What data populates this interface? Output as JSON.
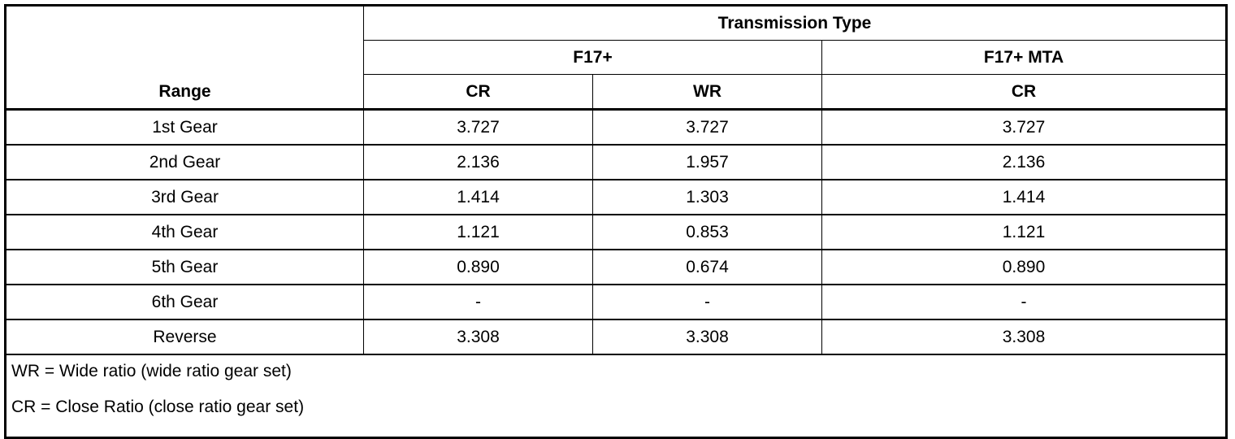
{
  "header": {
    "range_label": "Range",
    "group_label": "Transmission Type",
    "subgroups": [
      "F17+",
      "F17+ MTA"
    ],
    "columns": [
      "CR",
      "WR",
      "CR"
    ]
  },
  "rows": [
    {
      "range": "1st Gear",
      "values": [
        "3.727",
        "3.727",
        "3.727"
      ]
    },
    {
      "range": "2nd Gear",
      "values": [
        "2.136",
        "1.957",
        "2.136"
      ]
    },
    {
      "range": "3rd Gear",
      "values": [
        "1.414",
        "1.303",
        "1.414"
      ]
    },
    {
      "range": "4th Gear",
      "values": [
        "1.121",
        "0.853",
        "1.121"
      ]
    },
    {
      "range": "5th Gear",
      "values": [
        "0.890",
        "0.674",
        "0.890"
      ]
    },
    {
      "range": "6th Gear",
      "values": [
        "-",
        "-",
        "-"
      ]
    },
    {
      "range": "Reverse",
      "values": [
        "3.308",
        "3.308",
        "3.308"
      ]
    }
  ],
  "notes": [
    "WR = Wide ratio (wide ratio gear set)",
    "CR = Close Ratio (close ratio gear set)"
  ]
}
